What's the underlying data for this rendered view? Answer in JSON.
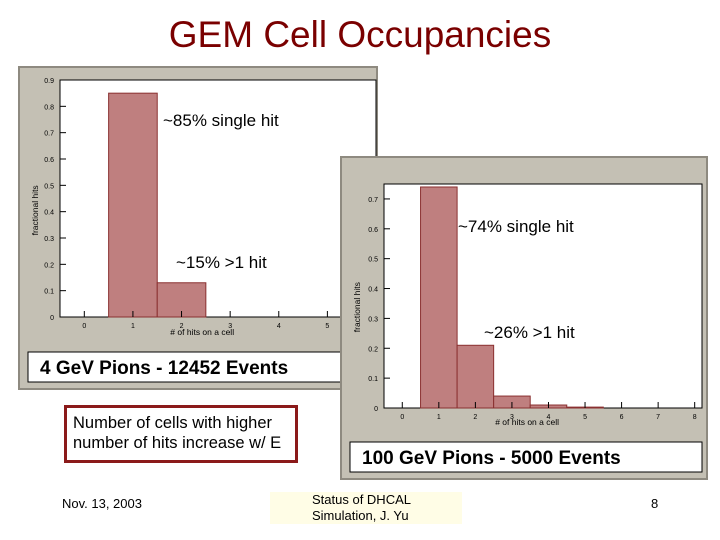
{
  "slide": {
    "title": "GEM Cell Occupancies",
    "note": "Number of cells with higher number of hits increase w/ E",
    "footer_date": "Nov. 13, 2003",
    "footer_center": "Status of DHCAL Simulation, J. Yu",
    "footer_page": "8"
  },
  "annotations": {
    "p1_single": "~85% single hit",
    "p1_multi": "~15%  >1 hit",
    "p2_single": "~74% single hit",
    "p2_multi": "~26%  >1 hit"
  },
  "colors": {
    "bar_fill": "#bf7f7f",
    "bar_stroke": "#8a3030",
    "frame_bg": "#c4c0b4",
    "plot_bg": "#ffffff",
    "title_color": "#7a0000"
  },
  "chart_data": [
    {
      "type": "bar",
      "caption": "4 GeV Pions - 12452 Events",
      "xlabel": "# of hits on a cell",
      "ylabel": "fractional hits",
      "xlim": [
        -0.5,
        6
      ],
      "ylim": [
        0,
        0.9
      ],
      "xticks": [
        "0",
        "1",
        "2",
        "3",
        "4",
        "5"
      ],
      "yticks": [
        "0",
        "0.1",
        "0.2",
        "0.3",
        "0.4",
        "0.5",
        "0.6",
        "0.7",
        "0.8",
        "0.9"
      ],
      "bins": [
        [
          0.5,
          1.5
        ],
        [
          1.5,
          2.5
        ]
      ],
      "values": [
        0.85,
        0.13
      ]
    },
    {
      "type": "bar",
      "caption": "100 GeV Pions - 5000 Events",
      "xlabel": "# of hits on a cell",
      "ylabel": "fractional hits",
      "xlim": [
        -0.5,
        8.2
      ],
      "ylim": [
        0,
        0.75
      ],
      "xticks": [
        "0",
        "1",
        "2",
        "3",
        "4",
        "5",
        "6",
        "7",
        "8"
      ],
      "yticks": [
        "0",
        "0.1",
        "0.2",
        "0.3",
        "0.4",
        "0.5",
        "0.6",
        "0.7"
      ],
      "bins": [
        [
          0.5,
          1.5
        ],
        [
          1.5,
          2.5
        ],
        [
          2.5,
          3.5
        ],
        [
          3.5,
          4.5
        ],
        [
          4.5,
          5.5
        ]
      ],
      "values": [
        0.74,
        0.21,
        0.04,
        0.01,
        0.003
      ]
    }
  ]
}
